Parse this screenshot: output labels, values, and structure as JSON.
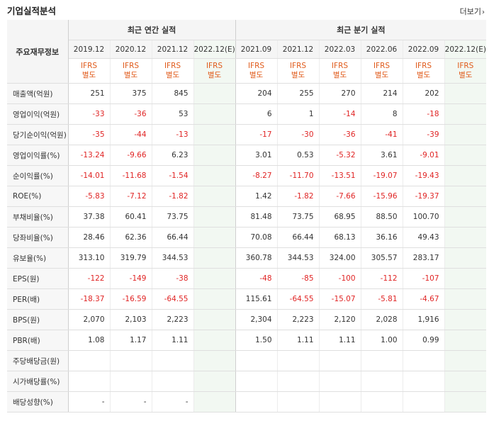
{
  "header": {
    "title": "기업실적분석",
    "more_label": "더보기",
    "more_icon": "chevron-right-icon"
  },
  "table": {
    "label_header": "주요재무정보",
    "annual_header": "최근 연간 실적",
    "quarterly_header": "최근 분기 실적",
    "annual_periods": [
      "2019.12",
      "2020.12",
      "2021.12",
      "2022.12(E)"
    ],
    "quarterly_periods": [
      "2021.09",
      "2021.12",
      "2022.03",
      "2022.06",
      "2022.09",
      "2022.12(E)"
    ],
    "ifrs_top": "IFRS",
    "ifrs_bottom": "별도",
    "rows": [
      {
        "label": "매출액(억원)",
        "values": [
          "251",
          "375",
          "845",
          "",
          "204",
          "255",
          "270",
          "214",
          "202",
          ""
        ]
      },
      {
        "label": "영업이익(억원)",
        "values": [
          "-33",
          "-36",
          "53",
          "",
          "6",
          "1",
          "-14",
          "8",
          "-18",
          ""
        ]
      },
      {
        "label": "당기순이익(억원)",
        "values": [
          "-35",
          "-44",
          "-13",
          "",
          "-17",
          "-30",
          "-36",
          "-41",
          "-39",
          ""
        ]
      },
      {
        "label": "영업이익률(%)",
        "values": [
          "-13.24",
          "-9.66",
          "6.23",
          "",
          "3.01",
          "0.53",
          "-5.32",
          "3.61",
          "-9.01",
          ""
        ]
      },
      {
        "label": "순이익률(%)",
        "values": [
          "-14.01",
          "-11.68",
          "-1.54",
          "",
          "-8.27",
          "-11.70",
          "-13.51",
          "-19.07",
          "-19.43",
          ""
        ]
      },
      {
        "label": "ROE(%)",
        "values": [
          "-5.83",
          "-7.12",
          "-1.82",
          "",
          "1.42",
          "-1.82",
          "-7.66",
          "-15.96",
          "-19.37",
          ""
        ]
      },
      {
        "label": "부채비율(%)",
        "values": [
          "37.38",
          "60.41",
          "73.75",
          "",
          "81.48",
          "73.75",
          "68.95",
          "88.50",
          "100.70",
          ""
        ]
      },
      {
        "label": "당좌비율(%)",
        "values": [
          "28.46",
          "62.36",
          "66.44",
          "",
          "70.08",
          "66.44",
          "68.13",
          "36.16",
          "49.43",
          ""
        ]
      },
      {
        "label": "유보율(%)",
        "values": [
          "313.10",
          "319.79",
          "344.53",
          "",
          "360.78",
          "344.53",
          "324.00",
          "305.57",
          "283.17",
          ""
        ]
      },
      {
        "label": "EPS(원)",
        "values": [
          "-122",
          "-149",
          "-38",
          "",
          "-48",
          "-85",
          "-100",
          "-112",
          "-107",
          ""
        ]
      },
      {
        "label": "PER(배)",
        "values": [
          "-18.37",
          "-16.59",
          "-64.55",
          "",
          "115.61",
          "-64.55",
          "-15.07",
          "-5.81",
          "-4.67",
          ""
        ]
      },
      {
        "label": "BPS(원)",
        "values": [
          "2,070",
          "2,103",
          "2,223",
          "",
          "2,304",
          "2,223",
          "2,120",
          "2,028",
          "1,916",
          ""
        ]
      },
      {
        "label": "PBR(배)",
        "values": [
          "1.08",
          "1.17",
          "1.11",
          "",
          "1.50",
          "1.11",
          "1.11",
          "1.00",
          "0.99",
          ""
        ]
      },
      {
        "label": "주당배당금(원)",
        "values": [
          "",
          "",
          "",
          "",
          "",
          "",
          "",
          "",
          "",
          ""
        ]
      },
      {
        "label": "시가배당률(%)",
        "values": [
          "",
          "",
          "",
          "",
          "",
          "",
          "",
          "",
          "",
          ""
        ]
      },
      {
        "label": "배당성향(%)",
        "values": [
          "-",
          "-",
          "-",
          "",
          "",
          "",
          "",
          "",
          "",
          ""
        ]
      }
    ]
  },
  "colors": {
    "negative": "#e02424",
    "ifrs": "#e05a1a",
    "estimate_bg": "#f2f8f2"
  }
}
